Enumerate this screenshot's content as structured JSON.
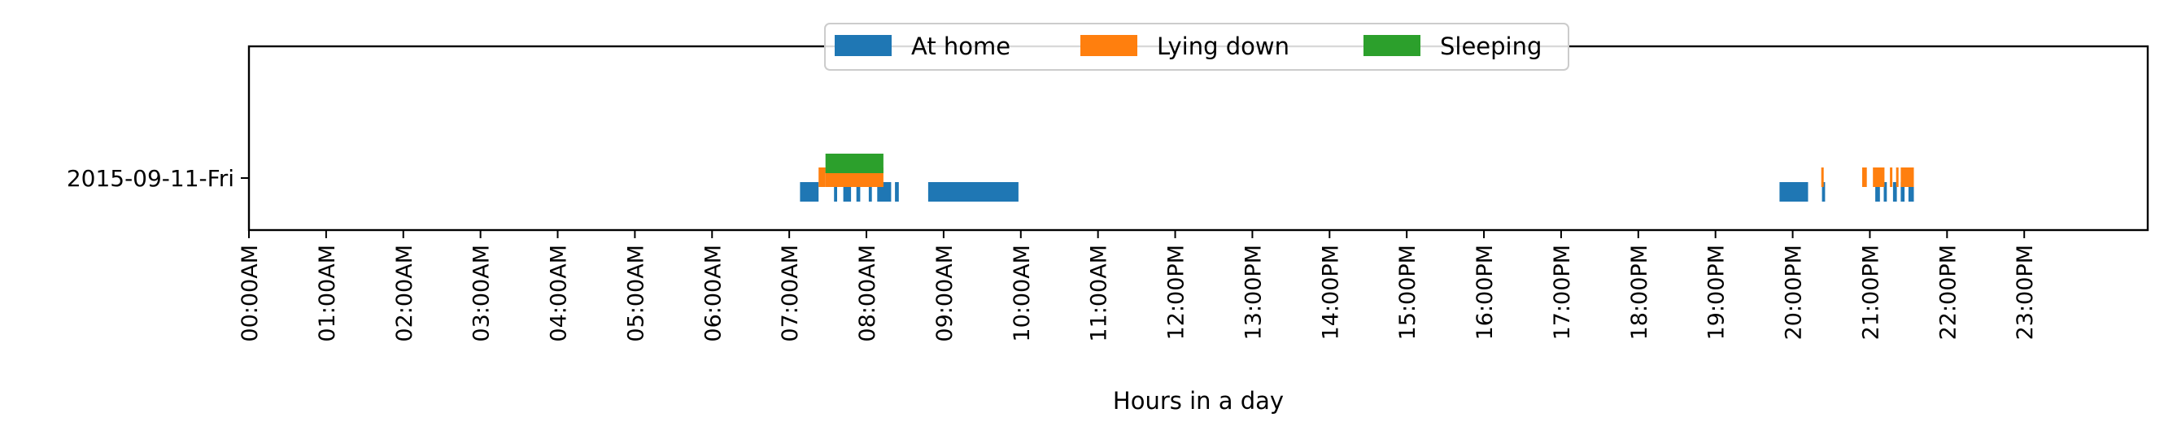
{
  "chart_data": {
    "type": "timeline",
    "title": "",
    "xlabel": "Hours in a day",
    "ylabel": "",
    "x_unit": "hours",
    "xlim": [
      0,
      24
    ],
    "legend_position": "top-center",
    "grid": false,
    "categories": [
      "2015-09-11-Fri"
    ],
    "x_ticks": [
      {
        "value": 0,
        "label": "00:00AM"
      },
      {
        "value": 1,
        "label": "01:00AM"
      },
      {
        "value": 2,
        "label": "02:00AM"
      },
      {
        "value": 3,
        "label": "03:00AM"
      },
      {
        "value": 4,
        "label": "04:00AM"
      },
      {
        "value": 5,
        "label": "05:00AM"
      },
      {
        "value": 6,
        "label": "06:00AM"
      },
      {
        "value": 7,
        "label": "07:00AM"
      },
      {
        "value": 8,
        "label": "08:00AM"
      },
      {
        "value": 9,
        "label": "09:00AM"
      },
      {
        "value": 10,
        "label": "10:00AM"
      },
      {
        "value": 11,
        "label": "11:00AM"
      },
      {
        "value": 12,
        "label": "12:00PM"
      },
      {
        "value": 13,
        "label": "13:00PM"
      },
      {
        "value": 14,
        "label": "14:00PM"
      },
      {
        "value": 15,
        "label": "15:00PM"
      },
      {
        "value": 16,
        "label": "16:00PM"
      },
      {
        "value": 17,
        "label": "17:00PM"
      },
      {
        "value": 18,
        "label": "18:00PM"
      },
      {
        "value": 19,
        "label": "19:00PM"
      },
      {
        "value": 20,
        "label": "20:00PM"
      },
      {
        "value": 21,
        "label": "21:00PM"
      },
      {
        "value": 22,
        "label": "22:00PM"
      },
      {
        "value": 23,
        "label": "23:00PM"
      }
    ],
    "series": [
      {
        "name": "At home",
        "color": "#1f77b4",
        "intervals": [
          [
            7.14,
            7.38
          ],
          [
            7.58,
            7.62
          ],
          [
            7.7,
            7.8
          ],
          [
            7.87,
            7.92
          ],
          [
            8.03,
            8.07
          ],
          [
            8.14,
            8.32
          ],
          [
            8.37,
            8.42
          ],
          [
            8.8,
            9.97
          ],
          [
            19.83,
            20.2
          ],
          [
            20.38,
            20.42
          ],
          [
            21.07,
            21.13
          ],
          [
            21.18,
            21.22
          ],
          [
            21.3,
            21.35
          ],
          [
            21.4,
            21.45
          ],
          [
            21.5,
            21.57
          ]
        ]
      },
      {
        "name": "Lying down",
        "color": "#ff7f0e",
        "intervals": [
          [
            7.38,
            7.47
          ],
          [
            7.47,
            8.22
          ],
          [
            20.37,
            20.4
          ],
          [
            20.9,
            20.96
          ],
          [
            21.04,
            21.19
          ],
          [
            21.26,
            21.29
          ],
          [
            21.34,
            21.36
          ],
          [
            21.4,
            21.57
          ]
        ]
      },
      {
        "name": "Sleeping",
        "color": "#2ca02c",
        "intervals": [
          [
            7.47,
            8.22
          ]
        ]
      }
    ]
  }
}
